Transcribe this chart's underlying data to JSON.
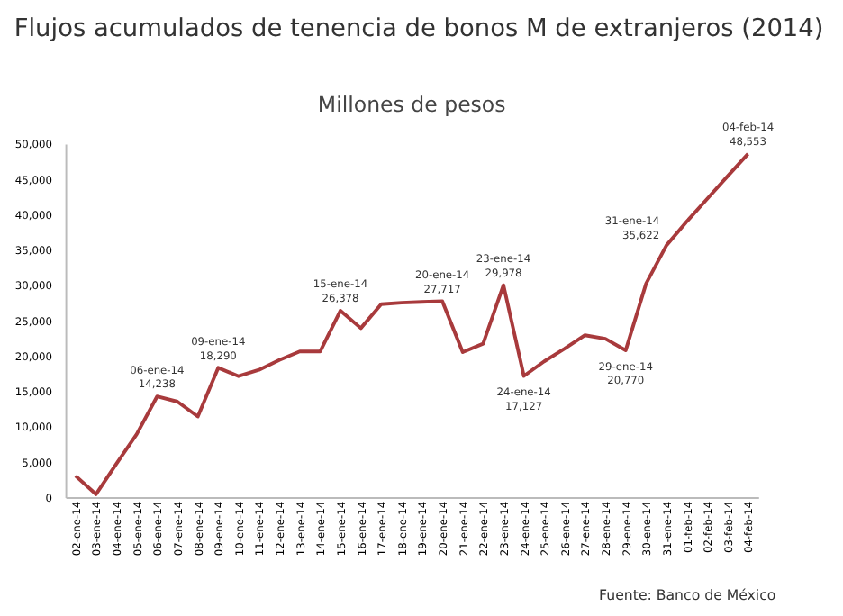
{
  "chart_data": {
    "type": "line",
    "title": "Flujos acumulados de tenencia de bonos M de extranjeros (2014)",
    "subtitle": "Millones de pesos",
    "categories": [
      "02-ene-14",
      "03-ene-14",
      "04-ene-14",
      "05-ene-14",
      "06-ene-14",
      "07-ene-14",
      "08-ene-14",
      "09-ene-14",
      "10-ene-14",
      "11-ene-14",
      "12-ene-14",
      "13-ene-14",
      "14-ene-14",
      "15-ene-14",
      "16-ene-14",
      "17-ene-14",
      "18-ene-14",
      "19-ene-14",
      "20-ene-14",
      "21-ene-14",
      "22-ene-14",
      "23-ene-14",
      "24-ene-14",
      "25-ene-14",
      "26-ene-14",
      "27-ene-14",
      "28-ene-14",
      "29-ene-14",
      "30-ene-14",
      "31-ene-14",
      "01-feb-14",
      "02-feb-14",
      "03-feb-14",
      "04-feb-14"
    ],
    "series": [
      {
        "color": "#a83a3c",
        "values": [
          3000,
          400,
          4700,
          8900,
          14238,
          13500,
          11400,
          18290,
          17100,
          18000,
          19400,
          20600,
          20600,
          26378,
          23900,
          27300,
          27500,
          27600,
          27717,
          20500,
          21700,
          29978,
          17127,
          19200,
          21000,
          22900,
          22400,
          20770,
          30200,
          35622,
          39000,
          42200,
          45400,
          48553
        ],
        "value_labels": [
          null,
          null,
          null,
          null,
          "14,238",
          null,
          null,
          "18,290",
          null,
          null,
          null,
          null,
          null,
          "26,378",
          null,
          null,
          null,
          null,
          "27,717",
          null,
          null,
          "29,978",
          "17,127",
          null,
          null,
          null,
          null,
          "20,770",
          null,
          "35,622",
          null,
          null,
          null,
          "48,553"
        ]
      }
    ],
    "annotations": [
      {
        "text": "06-ene-14",
        "x": "06-ene-14",
        "y": 14238
      },
      {
        "text": "09-ene-14",
        "x": "09-ene-14",
        "y": 18290
      },
      {
        "text": "15-ene-14",
        "x": "15-ene-14",
        "y": 26378
      },
      {
        "text": "20-ene-14",
        "x": "20-ene-14",
        "y": 27717
      },
      {
        "text": "23-ene-14",
        "x": "23-ene-14",
        "y": 29978
      },
      {
        "text": "24-ene-14",
        "x": "24-ene-14",
        "y": 17127
      },
      {
        "text": "29-ene-14",
        "x": "29-ene-14",
        "y": 20770
      },
      {
        "text": "31-ene-14",
        "x": "31-ene-14",
        "y": 35622
      },
      {
        "text": "04-feb-14",
        "x": "04-feb-14",
        "y": 48553
      },
      "Fuente: Banco de México"
    ],
    "ylim": [
      0,
      50000
    ],
    "yticks": [
      {
        "value": 0,
        "label": "0"
      },
      {
        "value": 5000,
        "label": "5,000"
      },
      {
        "value": 10000,
        "label": "10,000"
      },
      {
        "value": 15000,
        "label": "15,000"
      },
      {
        "value": 20000,
        "label": "20,000"
      },
      {
        "value": 25000,
        "label": "25,000"
      },
      {
        "value": 30000,
        "label": "30,000"
      },
      {
        "value": 35000,
        "label": "35,000"
      },
      {
        "value": 40000,
        "label": "40,000"
      },
      {
        "value": 45000,
        "label": "45,000"
      },
      {
        "value": 50000,
        "label": "50,000"
      }
    ],
    "grid": false,
    "marker": "none",
    "line_style": "solid"
  }
}
